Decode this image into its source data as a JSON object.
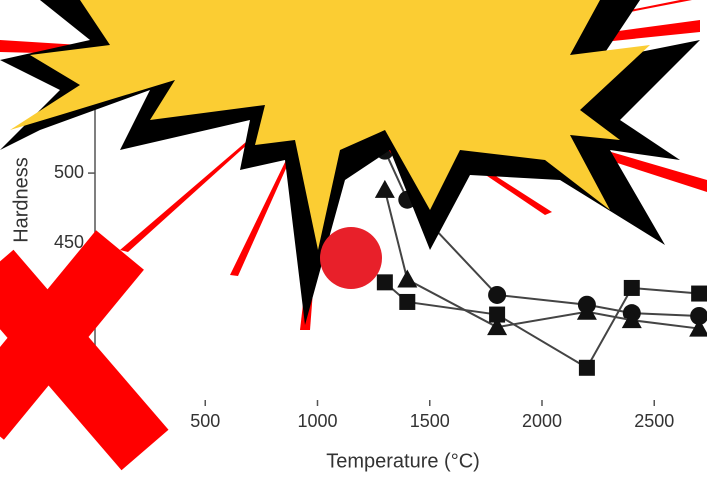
{
  "chart_data": {
    "type": "line",
    "x_label": "Temperature (°C)",
    "y_label": "Hardness",
    "xlim": [
      0,
      2735
    ],
    "ylim": [
      338,
      620
    ],
    "xticks": [
      500,
      1000,
      1500,
      2000,
      2500
    ],
    "yticks": [
      450,
      500
    ],
    "series": [
      {
        "marker": "circle",
        "color": "#111111",
        "x": [
          1300,
          1400,
          1800,
          2200,
          2400,
          2700
        ],
        "values": [
          516,
          481,
          413,
          406,
          400,
          398
        ]
      },
      {
        "marker": "triangle",
        "color": "#111111",
        "x": [
          1300,
          1400,
          1800,
          2200,
          2400,
          2700
        ],
        "values": [
          488,
          424,
          390,
          401,
          395,
          389
        ]
      },
      {
        "marker": "square",
        "color": "#111111",
        "x": [
          1300,
          1400,
          1800,
          2200,
          2400,
          2700
        ],
        "values": [
          422,
          408,
          399,
          361,
          418,
          414
        ]
      }
    ]
  }
}
